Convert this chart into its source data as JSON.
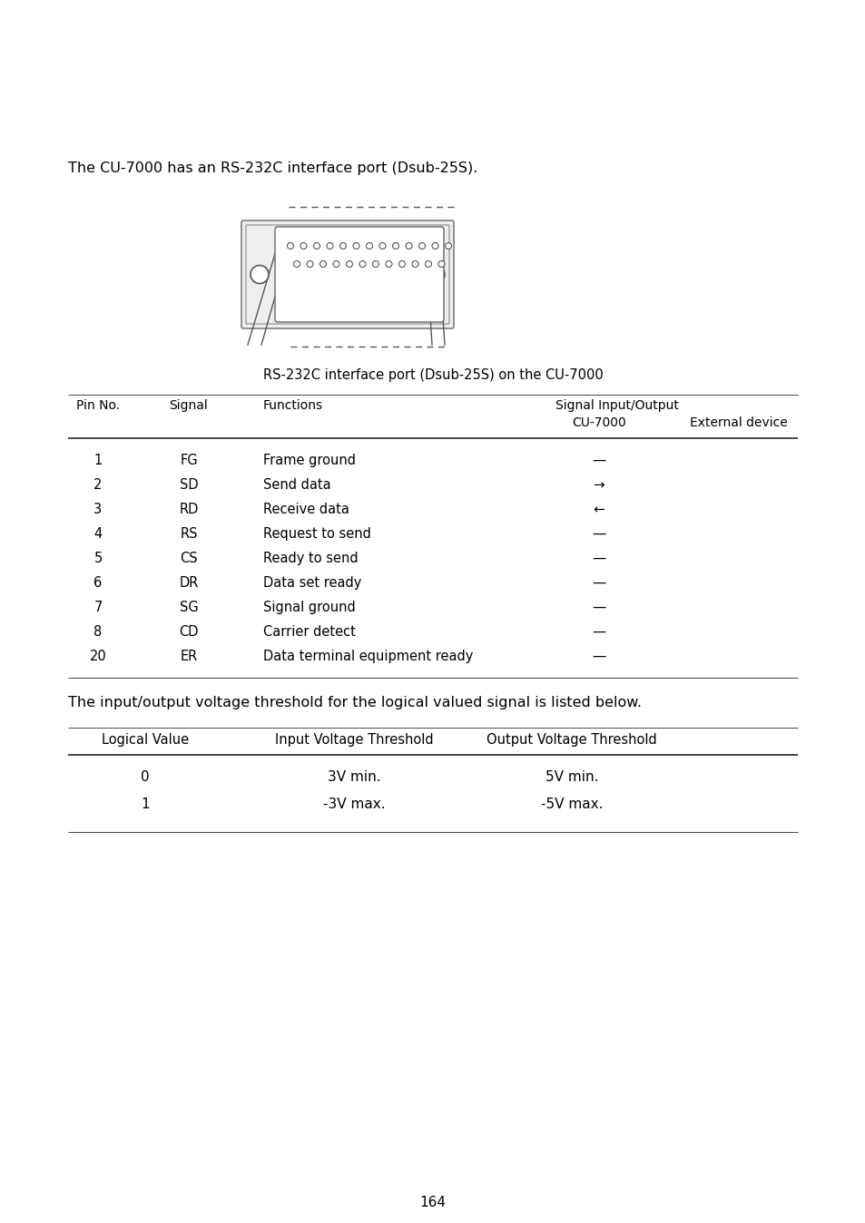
{
  "bg_color": "#ffffff",
  "text_color": "#000000",
  "page_number": "164",
  "intro_text": "The CU-7000 has an RS-232C interface port (Dsub-25S).",
  "connector_caption": "RS-232C interface port (Dsub-25S) on the CU-7000",
  "table1_rows": [
    [
      "1",
      "FG",
      "Frame ground",
      "—"
    ],
    [
      "2",
      "SD",
      "Send data",
      "→"
    ],
    [
      "3",
      "RD",
      "Receive data",
      "←"
    ],
    [
      "4",
      "RS",
      "Request to send",
      "—"
    ],
    [
      "5",
      "CS",
      "Ready to send",
      "—"
    ],
    [
      "6",
      "DR",
      "Data set ready",
      "—"
    ],
    [
      "7",
      "SG",
      "Signal ground",
      "—"
    ],
    [
      "8",
      "CD",
      "Carrier detect",
      "—"
    ],
    [
      "20",
      "ER",
      "Data terminal equipment ready",
      "—"
    ]
  ],
  "intro_text2": "The input/output voltage threshold for the logical valued signal is listed below.",
  "table2_headers": [
    "Logical Value",
    "Input Voltage Threshold",
    "Output Voltage Threshold"
  ],
  "table2_rows": [
    [
      "0",
      "3V min.",
      "5V min."
    ],
    [
      "1",
      "-3V max.",
      "-5V max."
    ]
  ]
}
